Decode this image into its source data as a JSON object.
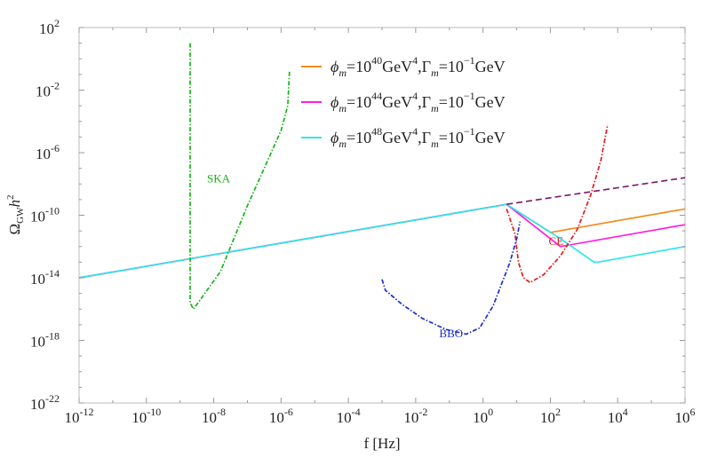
{
  "chart_data": {
    "type": "line",
    "title": "",
    "xlabel": "f [Hz]",
    "ylabel_base": "Ω",
    "ylabel_sub": "GW",
    "ylabel_tail": "h",
    "ylabel_sup": "2",
    "xscale": "log",
    "yscale": "log",
    "xlim_exp": [
      -12,
      6
    ],
    "ylim_exp": [
      -22,
      2
    ],
    "grid": false,
    "legend_position": "top-right",
    "xticks": [
      {
        "base": "10",
        "exp": "-12"
      },
      {
        "base": "10",
        "exp": "-10"
      },
      {
        "base": "10",
        "exp": "-8"
      },
      {
        "base": "10",
        "exp": "-6"
      },
      {
        "base": "10",
        "exp": "-4"
      },
      {
        "base": "10",
        "exp": "-2"
      },
      {
        "base": "10",
        "exp": "0"
      },
      {
        "base": "10",
        "exp": "2"
      },
      {
        "base": "10",
        "exp": "4"
      },
      {
        "base": "10",
        "exp": "6"
      }
    ],
    "yticks": [
      {
        "base": "10",
        "exp": "-22"
      },
      {
        "base": "10",
        "exp": "-18"
      },
      {
        "base": "10",
        "exp": "-14"
      },
      {
        "base": "10",
        "exp": "-10"
      },
      {
        "base": "10",
        "exp": "-6"
      },
      {
        "base": "10",
        "exp": "-2"
      },
      {
        "base": "10",
        "exp": "2"
      }
    ],
    "legend": [
      {
        "color": "#f28c1e",
        "parts": [
          "ϕ",
          "m",
          "=10",
          "40",
          "GeV",
          "4",
          ",Γ",
          "m",
          "=10",
          "−1",
          "GeV"
        ]
      },
      {
        "color": "#ff1ee1",
        "parts": [
          "ϕ",
          "m",
          "=10",
          "44",
          "GeV",
          "4",
          ",Γ",
          "m",
          "=10",
          "−1",
          "GeV"
        ]
      },
      {
        "color": "#2ee6ec",
        "parts": [
          "ϕ",
          "m",
          "=10",
          "48",
          "GeV",
          "4",
          ",Γ",
          "m",
          "=10",
          "−1",
          "GeV"
        ]
      }
    ],
    "series": [
      {
        "name": "ϕm=10^40 GeV^4, Γm=10^-1 GeV",
        "color": "#f28c1e",
        "style": "solid",
        "points": [
          [
            -12,
            -14.0
          ],
          [
            0.7,
            -9.3
          ],
          [
            2.0,
            -11.1
          ],
          [
            6.0,
            -9.6
          ]
        ]
      },
      {
        "name": "ϕm=10^44 GeV^4, Γm=10^-1 GeV",
        "color": "#ff1ee1",
        "style": "solid",
        "points": [
          [
            -12,
            -14.0
          ],
          [
            0.7,
            -9.3
          ],
          [
            2.3,
            -12.0
          ],
          [
            6.0,
            -10.6
          ]
        ]
      },
      {
        "name": "ϕm=10^48 GeV^4, Γm=10^-1 GeV",
        "color": "#2ee6ec",
        "style": "solid",
        "points": [
          [
            -12,
            -14.0
          ],
          [
            0.7,
            -9.3
          ],
          [
            2.3,
            -11.5
          ],
          [
            3.3,
            -13.0
          ],
          [
            3.4,
            -13.0
          ],
          [
            6.0,
            -12.0
          ]
        ]
      },
      {
        "name": "",
        "color": "#7a1a6e",
        "style": "dashed",
        "points": [
          [
            0.7,
            -9.3
          ],
          [
            6.0,
            -7.6
          ]
        ]
      },
      {
        "name": "SKA",
        "color": "#18b418",
        "style": "dashdot",
        "points": [
          [
            -8.7,
            1.0
          ],
          [
            -8.7,
            -15.6
          ],
          [
            -8.6,
            -16.0
          ],
          [
            -8.2,
            -14.8
          ],
          [
            -7.8,
            -13.6
          ],
          [
            -7.0,
            -9.4
          ],
          [
            -6.0,
            -4.6
          ],
          [
            -5.8,
            -3.0
          ],
          [
            -5.75,
            -0.8
          ]
        ]
      },
      {
        "name": "BBO",
        "color": "#1a2ed0",
        "style": "dashdot",
        "points": [
          [
            -3.0,
            -14.1
          ],
          [
            -2.9,
            -14.8
          ],
          [
            -2.4,
            -15.7
          ],
          [
            -1.8,
            -16.6
          ],
          [
            -1.1,
            -17.3
          ],
          [
            -0.5,
            -17.6
          ],
          [
            -0.1,
            -17.2
          ],
          [
            0.3,
            -15.8
          ],
          [
            0.8,
            -13.0
          ],
          [
            1.0,
            -11.5
          ],
          [
            1.1,
            -10.4
          ]
        ]
      },
      {
        "name": "CE",
        "color": "#e41a1a",
        "style": "dashdot",
        "points": [
          [
            0.7,
            -9.6
          ],
          [
            0.95,
            -11.2
          ],
          [
            1.05,
            -13.0
          ],
          [
            1.2,
            -14.0
          ],
          [
            1.4,
            -14.3
          ],
          [
            1.8,
            -13.8
          ],
          [
            2.3,
            -12.6
          ],
          [
            2.8,
            -10.9
          ],
          [
            3.2,
            -8.7
          ],
          [
            3.5,
            -6.5
          ],
          [
            3.7,
            -4.2
          ]
        ]
      }
    ],
    "annotations": [
      {
        "text": "SKA",
        "color": "#18b418",
        "x": -8.2,
        "y": -7.9
      },
      {
        "text": "BBO",
        "color": "#1a2ed0",
        "x": -1.3,
        "y": -17.8
      },
      {
        "text": "CE",
        "color": "#e41a1a",
        "x": 1.95,
        "y": -11.9
      }
    ]
  }
}
